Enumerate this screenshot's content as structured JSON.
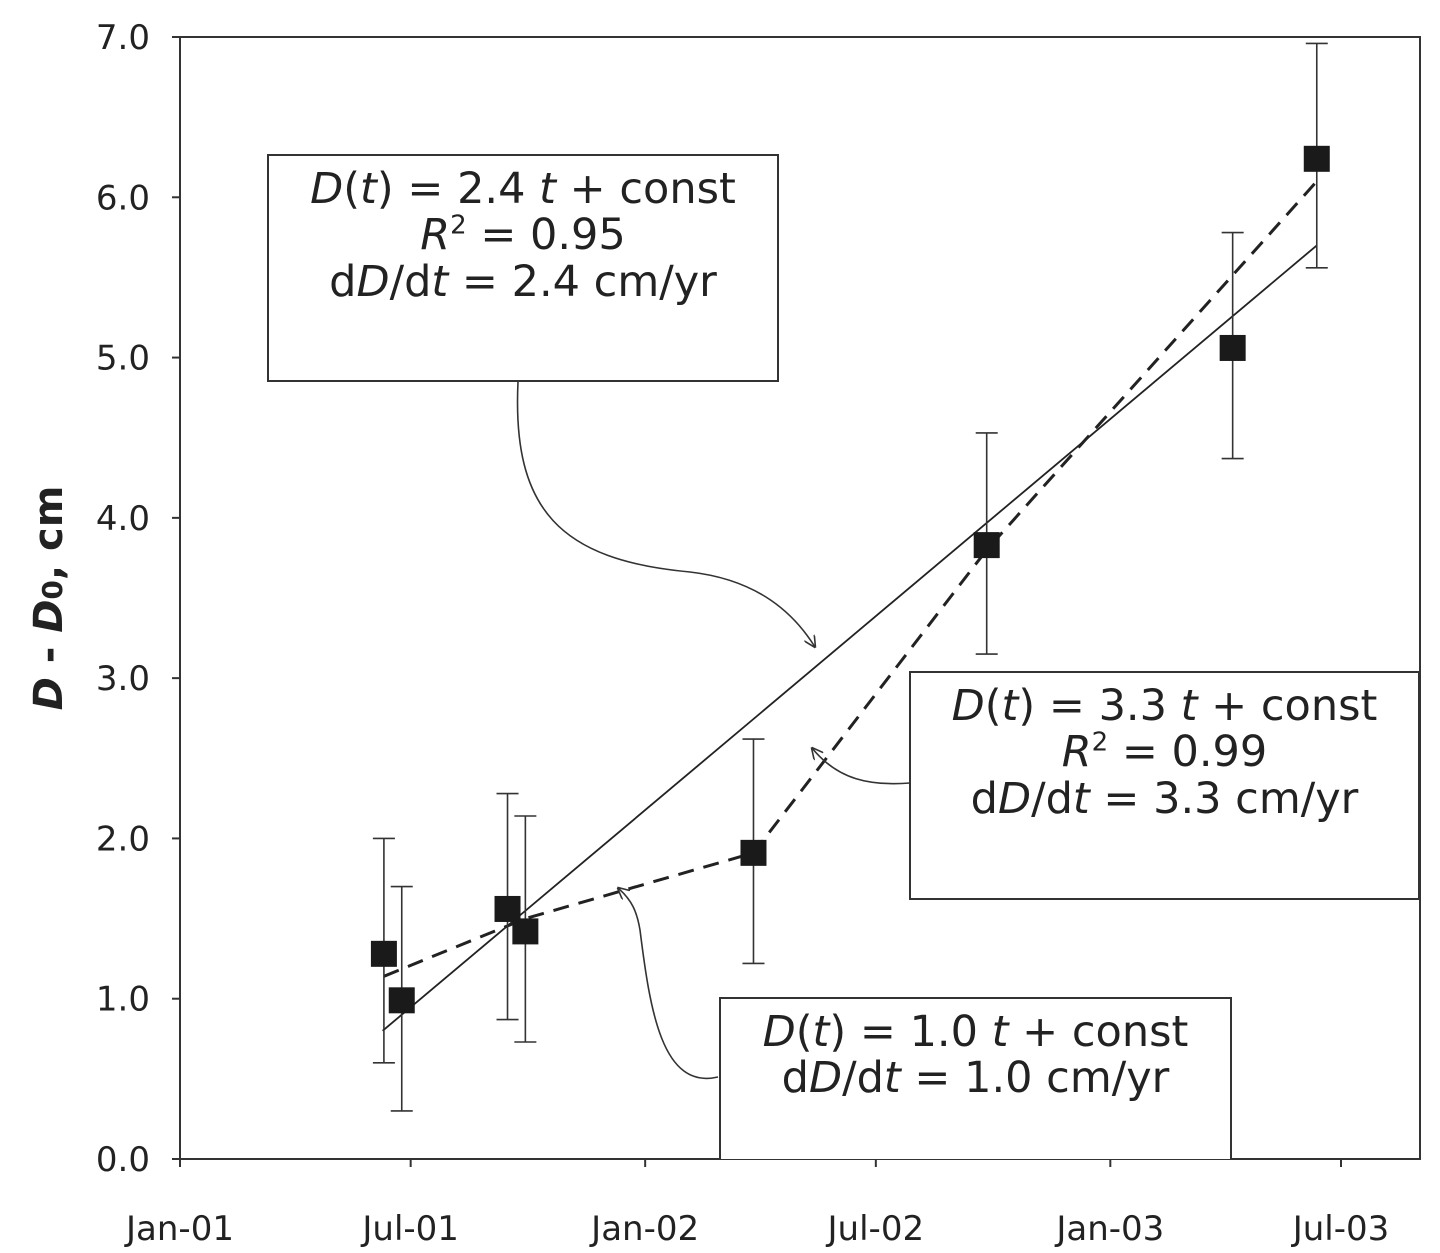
{
  "chart_data": {
    "type": "scatter",
    "title": "",
    "xlabel": "",
    "ylabel": {
      "main": "D",
      "sep": " - ",
      "sub_main": "D",
      "sub": "0",
      "unit": ", cm"
    },
    "x_ticks": [
      "Jan-01",
      "Jul-01",
      "Jan-02",
      "Jul-02",
      "Jan-03",
      "Jul-03"
    ],
    "xlim": [
      "2001-01-01",
      "2003-09-01"
    ],
    "y_ticks": [
      "0.0",
      "1.0",
      "2.0",
      "3.0",
      "4.0",
      "5.0",
      "6.0",
      "7.0"
    ],
    "ylim": [
      0,
      7
    ],
    "grid": false,
    "points": [
      {
        "x": "2001-06-10",
        "y": 1.28,
        "err_low": 0.6,
        "err_high": 2.0
      },
      {
        "x": "2001-06-24",
        "y": 0.99,
        "err_low": 0.3,
        "err_high": 1.7
      },
      {
        "x": "2001-09-15",
        "y": 1.56,
        "err_low": 0.87,
        "err_high": 2.28
      },
      {
        "x": "2001-09-29",
        "y": 1.42,
        "err_low": 0.73,
        "err_high": 2.14
      },
      {
        "x": "2002-03-27",
        "y": 1.91,
        "err_low": 1.22,
        "err_high": 2.62
      },
      {
        "x": "2002-09-26",
        "y": 3.83,
        "err_low": 3.15,
        "err_high": 4.53
      },
      {
        "x": "2003-04-07",
        "y": 5.06,
        "err_low": 4.37,
        "err_high": 5.78
      },
      {
        "x": "2003-06-12",
        "y": 6.24,
        "err_low": 5.56,
        "err_high": 6.96
      }
    ],
    "fit_lines": [
      {
        "style": "solid",
        "points": [
          [
            "2001-06-09",
            0.8
          ],
          [
            "2003-06-12",
            5.7
          ]
        ]
      },
      {
        "style": "dashed",
        "points": [
          [
            "2001-06-10",
            1.14
          ],
          [
            "2001-09-29",
            1.5
          ],
          [
            "2002-03-27",
            1.91
          ],
          [
            "2002-09-26",
            3.8
          ],
          [
            "2003-06-12",
            6.1
          ]
        ]
      }
    ],
    "annotations": [
      {
        "lines": [
          [
            {
              "t": "D",
              "i": true
            },
            {
              "t": "("
            },
            {
              "t": "t",
              "i": true
            },
            {
              "t": ") = 2.4 "
            },
            {
              "t": "t",
              "i": true
            },
            {
              "t": " + const"
            }
          ],
          [
            {
              "t": "R",
              "i": true
            },
            {
              "t": "2",
              "sup": true
            },
            {
              "t": " = 0.95"
            }
          ],
          [
            {
              "t": "d"
            },
            {
              "t": "D",
              "i": true
            },
            {
              "t": "/d"
            },
            {
              "t": "t",
              "i": true
            },
            {
              "t": " = 2.4  cm/yr"
            }
          ]
        ]
      },
      {
        "lines": [
          [
            {
              "t": "D",
              "i": true
            },
            {
              "t": "("
            },
            {
              "t": "t",
              "i": true
            },
            {
              "t": ") = 3.3 "
            },
            {
              "t": "t",
              "i": true
            },
            {
              "t": " + const"
            }
          ],
          [
            {
              "t": "R",
              "i": true
            },
            {
              "t": "2",
              "sup": true
            },
            {
              "t": " = 0.99"
            }
          ],
          [
            {
              "t": "d"
            },
            {
              "t": "D",
              "i": true
            },
            {
              "t": "/d"
            },
            {
              "t": "t",
              "i": true
            },
            {
              "t": " = 3.3  cm/yr"
            }
          ]
        ]
      },
      {
        "lines": [
          [
            {
              "t": "D",
              "i": true
            },
            {
              "t": "("
            },
            {
              "t": "t",
              "i": true
            },
            {
              "t": ") = 1.0 "
            },
            {
              "t": "t",
              "i": true
            },
            {
              "t": " + const"
            }
          ],
          [
            {
              "t": "d"
            },
            {
              "t": "D",
              "i": true
            },
            {
              "t": "/d"
            },
            {
              "t": "t",
              "i": true
            },
            {
              "t": " = 1.0  cm/yr"
            }
          ]
        ]
      }
    ]
  }
}
